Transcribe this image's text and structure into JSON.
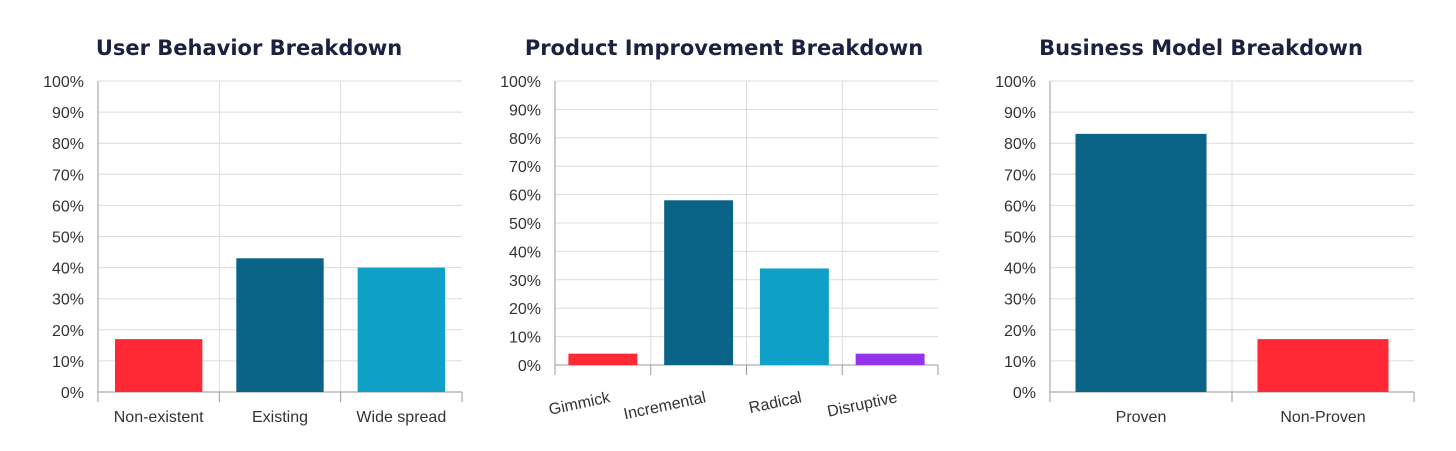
{
  "chart_data": [
    {
      "type": "bar",
      "title": "User Behavior Breakdown",
      "categories": [
        "Non-existent",
        "Existing",
        "Wide spread"
      ],
      "values": [
        17,
        43,
        40
      ],
      "colors": [
        "#ff2936",
        "#0a6487",
        "#0ea0c6"
      ],
      "ylim": [
        0,
        100
      ],
      "yticks": [
        "0%",
        "10%",
        "20%",
        "30%",
        "40%",
        "50%",
        "60%",
        "70%",
        "80%",
        "90%",
        "100%"
      ],
      "grid": true,
      "rotated_labels": false
    },
    {
      "type": "bar",
      "title": "Product Improvement Breakdown",
      "categories": [
        "Gimmick",
        "Incremental",
        "Radical",
        "Disruptive"
      ],
      "values": [
        4,
        58,
        34,
        4
      ],
      "colors": [
        "#ff2936",
        "#0a6487",
        "#0ea0c6",
        "#9333ea"
      ],
      "ylim": [
        0,
        100
      ],
      "yticks": [
        "0%",
        "10%",
        "20%",
        "30%",
        "40%",
        "50%",
        "60%",
        "70%",
        "80%",
        "90%",
        "100%"
      ],
      "grid": true,
      "rotated_labels": true
    },
    {
      "type": "bar",
      "title": "Business Model Breakdown",
      "categories": [
        "Proven",
        "Non-Proven"
      ],
      "values": [
        83,
        17
      ],
      "colors": [
        "#0a6487",
        "#ff2936"
      ],
      "ylim": [
        0,
        100
      ],
      "yticks": [
        "0%",
        "10%",
        "20%",
        "30%",
        "40%",
        "50%",
        "60%",
        "70%",
        "80%",
        "90%",
        "100%"
      ],
      "grid": true,
      "rotated_labels": false
    }
  ]
}
